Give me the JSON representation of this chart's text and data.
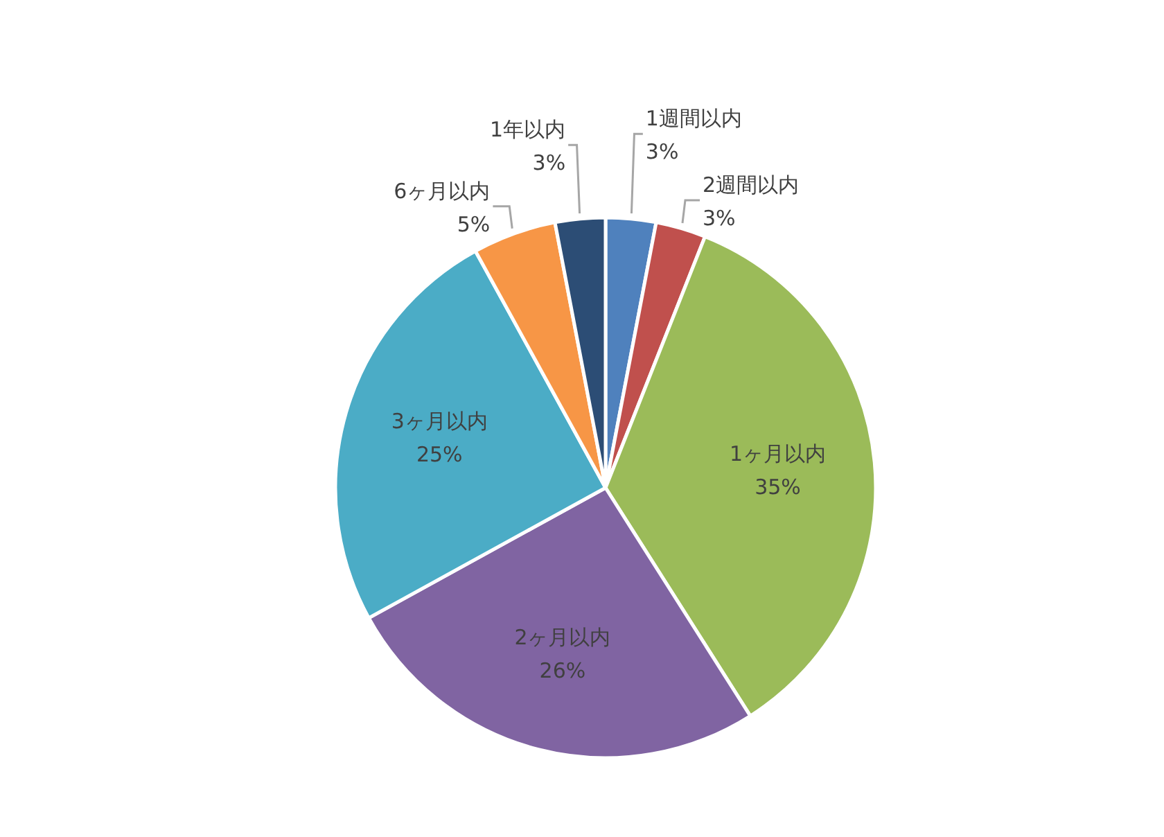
{
  "chart_data": {
    "type": "pie",
    "categories": [
      "1週間以内",
      "2週間以内",
      "1ヶ月以内",
      "2ヶ月以内",
      "3ヶ月以内",
      "6ヶ月以内",
      "1年以内"
    ],
    "values": [
      3,
      3,
      35,
      26,
      25,
      5,
      3
    ],
    "colors": [
      "#4f81bd",
      "#c0504d",
      "#9bbb59",
      "#8064a2",
      "#4bacc6",
      "#f79646",
      "#2c4d75"
    ],
    "value_labels": [
      "3%",
      "3%",
      "35%",
      "26%",
      "25%",
      "5%",
      "3%"
    ]
  }
}
